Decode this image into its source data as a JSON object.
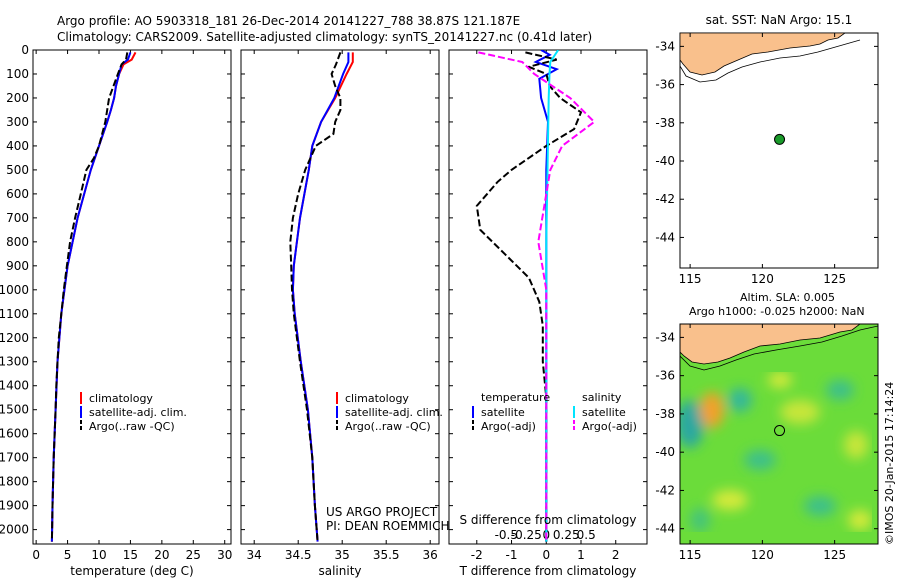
{
  "header": {
    "line1": "Argo profile: AO 5903318_181 26-Dec-2014 20141227_788 38.87S 121.187E",
    "line2": "Climatology: CARS2009. Satellite-adjusted climatology: synTS_20141227.nc (0.41d later)"
  },
  "colors": {
    "climatology": "#ff0000",
    "satellite": "#0000ff",
    "argo": "#000000",
    "salinity_satellite": "#00e5ff",
    "salinity_argo": "#ff00ff",
    "land": "#f9c08c"
  },
  "chart_data": [
    {
      "type": "line",
      "panel": "temperature",
      "xlabel": "temperature (deg C)",
      "ylabel": "",
      "xlim": [
        -0.5,
        31
      ],
      "xticks": [
        "0",
        "5",
        "10",
        "15",
        "20",
        "25",
        "30"
      ],
      "xtick_values": [
        0,
        5,
        10,
        15,
        20,
        25,
        30
      ],
      "ylim": [
        0,
        2060
      ],
      "yticks": [
        "0",
        "100",
        "200",
        "300",
        "400",
        "500",
        "600",
        "700",
        "800",
        "900",
        "1000",
        "1100",
        "1200",
        "1300",
        "1400",
        "1500",
        "1600",
        "1700",
        "1800",
        "1900",
        "2000"
      ],
      "ytick_values": [
        0,
        100,
        200,
        300,
        400,
        500,
        600,
        700,
        800,
        900,
        1000,
        1100,
        1200,
        1300,
        1400,
        1500,
        1600,
        1700,
        1800,
        1900,
        2000
      ],
      "legend": [
        "climatology",
        "satellite-adj. clim.",
        "Argo(..raw -QC)"
      ],
      "series": [
        {
          "name": "climatology",
          "style": "solid",
          "depth": [
            10,
            40,
            60,
            100,
            150,
            200,
            250,
            300,
            400,
            500,
            700,
            900,
            1100,
            1300,
            1500,
            1700,
            1900,
            2050
          ],
          "values": [
            15.8,
            15.2,
            13.9,
            13.2,
            12.7,
            12.4,
            11.9,
            11.3,
            10.0,
            8.7,
            6.6,
            5.0,
            4.0,
            3.4,
            3.1,
            2.8,
            2.6,
            2.5
          ]
        },
        {
          "name": "satellite-adj. clim.",
          "style": "solid",
          "depth": [
            10,
            40,
            60,
            100,
            150,
            200,
            250,
            300,
            400,
            500,
            700,
            900,
            1100,
            1300,
            1500,
            1700,
            1900,
            2050
          ],
          "values": [
            15.0,
            14.6,
            13.6,
            13.2,
            12.7,
            12.4,
            11.9,
            11.3,
            10.0,
            8.7,
            6.6,
            5.0,
            4.0,
            3.4,
            3.1,
            2.8,
            2.6,
            2.5
          ]
        },
        {
          "name": "Argo(..raw -QC)",
          "style": "dashed",
          "depth": [
            10,
            40,
            60,
            100,
            150,
            200,
            250,
            300,
            400,
            450,
            500,
            600,
            700,
            800,
            900,
            1000,
            1100,
            1200,
            1300,
            1400,
            1500,
            1700,
            1900,
            2050
          ],
          "values": [
            14.5,
            14.3,
            13.6,
            13.0,
            12.3,
            11.6,
            11.3,
            11.0,
            10.0,
            9.2,
            8.0,
            7.1,
            6.2,
            5.4,
            4.9,
            4.4,
            4.0,
            3.6,
            3.4,
            3.2,
            3.1,
            2.8,
            2.6,
            2.5
          ]
        }
      ]
    },
    {
      "type": "line",
      "panel": "salinity",
      "xlabel": "salinity",
      "ylabel": "",
      "xlim": [
        33.85,
        36.1
      ],
      "xticks": [
        "34",
        "34.5",
        "35",
        "35.5",
        "36"
      ],
      "xtick_values": [
        34,
        34.5,
        35,
        35.5,
        36
      ],
      "ylim": [
        0,
        2060
      ],
      "legend": [
        "climatology",
        "satellite-adj. clim.",
        "Argo(..raw -QC)"
      ],
      "annotation": [
        "US ARGO PROJECT",
        "PI: DEAN ROEMMICH"
      ],
      "series": [
        {
          "name": "climatology",
          "style": "solid",
          "depth": [
            10,
            50,
            100,
            200,
            300,
            400,
            500,
            700,
            900,
            1000,
            1100,
            1300,
            1500,
            1700,
            1900,
            2050
          ],
          "values": [
            35.12,
            35.12,
            35.05,
            34.92,
            34.76,
            34.66,
            34.62,
            34.52,
            34.45,
            34.44,
            34.46,
            34.53,
            34.61,
            34.66,
            34.69,
            34.72
          ]
        },
        {
          "name": "satellite-adj. clim.",
          "style": "solid",
          "depth": [
            10,
            50,
            100,
            200,
            300,
            400,
            500,
            700,
            900,
            1000,
            1100,
            1300,
            1500,
            1700,
            1900,
            2050
          ],
          "values": [
            35.07,
            35.07,
            35.01,
            34.91,
            34.76,
            34.66,
            34.62,
            34.52,
            34.45,
            34.44,
            34.46,
            34.53,
            34.61,
            34.66,
            34.69,
            34.72
          ]
        },
        {
          "name": "Argo(..raw -QC)",
          "style": "dashed",
          "depth": [
            10,
            60,
            100,
            150,
            200,
            250,
            300,
            350,
            400,
            500,
            600,
            700,
            800,
            900,
            1000,
            1100,
            1300,
            1500,
            1700,
            1900,
            2050
          ],
          "values": [
            34.98,
            34.93,
            34.88,
            34.92,
            34.98,
            34.98,
            34.92,
            34.9,
            34.7,
            34.58,
            34.5,
            34.44,
            34.41,
            34.42,
            34.43,
            34.45,
            34.52,
            34.6,
            34.66,
            34.69,
            34.72
          ]
        }
      ]
    },
    {
      "type": "line",
      "panel": "difference",
      "xlabel": "T difference from climatology",
      "xlabel_top": "S difference from climatology",
      "xlim": [
        -2.8,
        2.9
      ],
      "xticks": [
        "-2",
        "-1",
        "0",
        "1",
        "2"
      ],
      "xtick_values": [
        -2,
        -1,
        0,
        1,
        2
      ],
      "xticks_top": [
        "-0.5",
        "-0.25",
        "0",
        "0.25",
        "0.5"
      ],
      "xtick_top_values": [
        -0.5,
        -0.25,
        0,
        0.25,
        0.5
      ],
      "ylim": [
        0,
        2060
      ],
      "legend_temperature_title": "temperature",
      "legend_salinity_title": "salinity",
      "legend": [
        "satellite",
        "Argo(-adj)",
        "satellite",
        "Argo(-adj)"
      ],
      "series": [
        {
          "name": "satellite",
          "group": "temperature",
          "style": "solid",
          "depth": [
            0,
            20,
            50,
            80,
            120,
            200,
            300,
            500,
            700,
            900,
            1100,
            1300,
            1600,
            2050
          ],
          "values": [
            -0.15,
            0.1,
            -0.3,
            0.3,
            -0.2,
            -0.15,
            0.05,
            0,
            0,
            0,
            0,
            0,
            0,
            0
          ]
        },
        {
          "name": "Argo(-adj)",
          "group": "temperature",
          "style": "dashed",
          "depth": [
            10,
            40,
            70,
            100,
            150,
            200,
            260,
            330,
            400,
            450,
            500,
            550,
            650,
            750,
            850,
            950,
            1050,
            1150,
            1300,
            1450,
            1600,
            1800,
            2050
          ],
          "values": [
            -0.6,
            0.3,
            -0.5,
            0,
            0.1,
            0.4,
            1.0,
            0.8,
            0,
            -0.5,
            -1.0,
            -1.4,
            -2.0,
            -1.9,
            -1.2,
            -0.5,
            -0.2,
            -0.1,
            -0.1,
            0,
            0,
            0,
            0
          ]
        },
        {
          "name": "satellite",
          "group": "salinity",
          "style": "solid",
          "depth": [
            0,
            50,
            100,
            200,
            400,
            600,
            800,
            1000,
            1300,
            1600,
            2050
          ],
          "values": [
            0.15,
            0.05,
            0.04,
            0.03,
            0.02,
            0.01,
            0,
            0,
            0,
            0,
            0
          ]
        },
        {
          "name": "Argo(-adj)",
          "group": "salinity",
          "style": "dashed",
          "depth": [
            10,
            50,
            100,
            200,
            300,
            400,
            500,
            600,
            700,
            800,
            900,
            1000,
            1200,
            1500,
            2050
          ],
          "values": [
            -0.85,
            -0.3,
            -0.15,
            0.3,
            0.6,
            0.2,
            0.05,
            0,
            -0.05,
            -0.1,
            -0.05,
            0,
            0,
            0,
            0
          ]
        }
      ]
    }
  ],
  "map_top": {
    "title": "sat. SST: NaN Argo: 15.1",
    "xticks": [
      "115",
      "120",
      "125"
    ],
    "yticks": [
      "-34",
      "-36",
      "-38",
      "-40",
      "-42",
      "-44"
    ],
    "float_lon": 121.187,
    "float_lat": -38.87
  },
  "map_bottom": {
    "title1": "Altim. SLA: 0.005",
    "title2": "Argo h1000: -0.025 h2000: NaN",
    "xticks": [
      "115",
      "120",
      "125"
    ],
    "yticks": [
      "-34",
      "-36",
      "-38",
      "-40",
      "-42",
      "-44"
    ],
    "float_lon": 121.187,
    "float_lat": -38.87
  },
  "credit": "©IMOS 20-Jan-2015 17:14:24"
}
